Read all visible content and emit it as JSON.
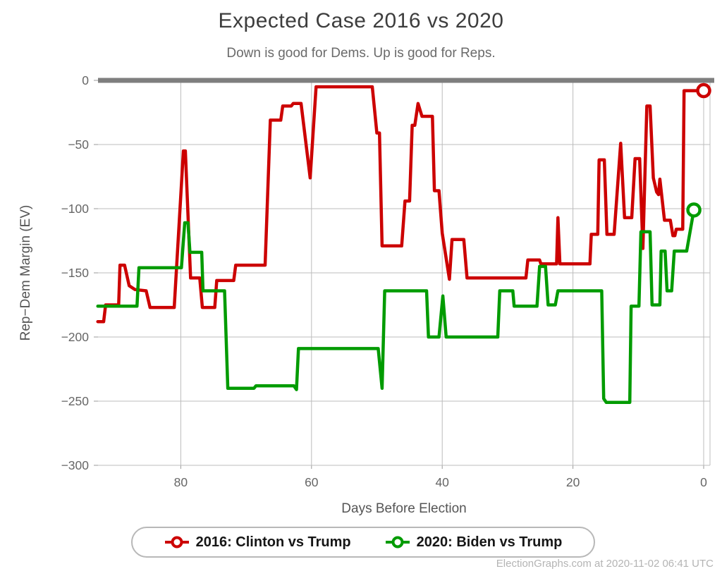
{
  "title": "Expected Case 2016 vs 2020",
  "subtitle": "Down is good for Dems. Up is good for Reps.",
  "footer": "ElectionGraphs.com at 2020-11-02 06:41 UTC",
  "chart_data": {
    "type": "line",
    "title": "Expected Case 2016 vs 2020",
    "subtitle": "Down is good for Dems. Up is good for Reps.",
    "xlabel": "Days Before Election",
    "ylabel": "Rep−Dem Margin (EV)",
    "x_reversed": true,
    "xlim": [
      93,
      0
    ],
    "ylim": [
      -300,
      0
    ],
    "x_ticks": [
      80,
      60,
      40,
      20,
      0
    ],
    "x_tick_labels": [
      "80",
      "60",
      "40",
      "20",
      "0"
    ],
    "y_ticks": [
      0,
      -50,
      -100,
      -150,
      -200,
      -250,
      -300
    ],
    "y_tick_labels": [
      "0",
      "−50",
      "−100",
      "−150",
      "−200",
      "−250",
      "−300"
    ],
    "grid": true,
    "grid_color": "#bcbcbc",
    "zero_bar_color": "#7e7e7e",
    "tick_text_color": "#666666",
    "legend_position": "bottom",
    "series": [
      {
        "name": "2016: Clinton vs Trump",
        "color": "#cc0000",
        "end_marker": true,
        "points": [
          [
            92.7,
            -188
          ],
          [
            91.8,
            -188
          ],
          [
            91.5,
            -175
          ],
          [
            89.5,
            -175
          ],
          [
            89.3,
            -144
          ],
          [
            88.6,
            -144
          ],
          [
            87.9,
            -160
          ],
          [
            87.0,
            -163
          ],
          [
            85.3,
            -164
          ],
          [
            84.7,
            -177
          ],
          [
            81.0,
            -177
          ],
          [
            79.6,
            -55
          ],
          [
            79.3,
            -55
          ],
          [
            78.5,
            -154
          ],
          [
            77.1,
            -154
          ],
          [
            76.7,
            -177
          ],
          [
            74.8,
            -177
          ],
          [
            74.5,
            -156
          ],
          [
            71.9,
            -156
          ],
          [
            71.6,
            -144
          ],
          [
            67.1,
            -144
          ],
          [
            66.3,
            -31
          ],
          [
            64.7,
            -31
          ],
          [
            64.4,
            -20
          ],
          [
            63.1,
            -20
          ],
          [
            62.8,
            -18
          ],
          [
            61.6,
            -18
          ],
          [
            60.2,
            -76
          ],
          [
            59.3,
            -5
          ],
          [
            50.7,
            -5
          ],
          [
            50.0,
            -41
          ],
          [
            49.6,
            -41
          ],
          [
            49.2,
            -129
          ],
          [
            46.2,
            -129
          ],
          [
            45.7,
            -94
          ],
          [
            45.0,
            -94
          ],
          [
            44.6,
            -35
          ],
          [
            44.2,
            -35
          ],
          [
            43.7,
            -18
          ],
          [
            43.1,
            -28
          ],
          [
            41.5,
            -28
          ],
          [
            41.2,
            -86
          ],
          [
            40.5,
            -86
          ],
          [
            40.0,
            -119
          ],
          [
            38.9,
            -155
          ],
          [
            38.5,
            -124
          ],
          [
            36.7,
            -124
          ],
          [
            36.2,
            -154
          ],
          [
            27.2,
            -154
          ],
          [
            26.9,
            -140
          ],
          [
            25.1,
            -140
          ],
          [
            24.9,
            -143
          ],
          [
            22.5,
            -143
          ],
          [
            22.3,
            -107
          ],
          [
            22.0,
            -143
          ],
          [
            17.4,
            -143
          ],
          [
            17.2,
            -120
          ],
          [
            16.2,
            -120
          ],
          [
            16.0,
            -62
          ],
          [
            15.2,
            -62
          ],
          [
            14.8,
            -120
          ],
          [
            13.7,
            -120
          ],
          [
            12.7,
            -49
          ],
          [
            12.1,
            -107
          ],
          [
            11.0,
            -107
          ],
          [
            10.5,
            -61
          ],
          [
            9.8,
            -61
          ],
          [
            9.3,
            -131
          ],
          [
            8.7,
            -20
          ],
          [
            8.2,
            -20
          ],
          [
            7.7,
            -76
          ],
          [
            7.2,
            -87
          ],
          [
            6.9,
            -89
          ],
          [
            6.7,
            -77
          ],
          [
            6.0,
            -109
          ],
          [
            5.1,
            -109
          ],
          [
            4.7,
            -121
          ],
          [
            4.4,
            -121
          ],
          [
            4.2,
            -116
          ],
          [
            3.2,
            -116
          ],
          [
            3.0,
            -8
          ],
          [
            0,
            -8
          ]
        ]
      },
      {
        "name": "2020: Biden vs Trump",
        "color": "#009b00",
        "end_marker": true,
        "points": [
          [
            92.7,
            -176
          ],
          [
            86.7,
            -176
          ],
          [
            86.4,
            -146
          ],
          [
            79.9,
            -146
          ],
          [
            79.4,
            -111
          ],
          [
            78.9,
            -111
          ],
          [
            78.6,
            -134
          ],
          [
            76.8,
            -134
          ],
          [
            76.6,
            -164
          ],
          [
            73.3,
            -164
          ],
          [
            72.8,
            -240
          ],
          [
            68.8,
            -240
          ],
          [
            68.5,
            -238
          ],
          [
            62.7,
            -238
          ],
          [
            62.3,
            -241
          ],
          [
            62.0,
            -209
          ],
          [
            49.8,
            -209
          ],
          [
            49.2,
            -240
          ],
          [
            48.8,
            -164
          ],
          [
            42.4,
            -164
          ],
          [
            42.1,
            -200
          ],
          [
            40.5,
            -200
          ],
          [
            39.9,
            -168
          ],
          [
            39.4,
            -200
          ],
          [
            31.5,
            -200
          ],
          [
            31.2,
            -164
          ],
          [
            29.2,
            -164
          ],
          [
            29.0,
            -176
          ],
          [
            25.5,
            -176
          ],
          [
            25.1,
            -145
          ],
          [
            24.2,
            -145
          ],
          [
            23.8,
            -175
          ],
          [
            22.7,
            -175
          ],
          [
            22.3,
            -164
          ],
          [
            15.6,
            -164
          ],
          [
            15.3,
            -248
          ],
          [
            14.9,
            -251
          ],
          [
            11.3,
            -251
          ],
          [
            11.1,
            -176
          ],
          [
            9.9,
            -176
          ],
          [
            9.6,
            -118
          ],
          [
            8.2,
            -118
          ],
          [
            7.9,
            -175
          ],
          [
            6.7,
            -175
          ],
          [
            6.5,
            -133
          ],
          [
            5.9,
            -133
          ],
          [
            5.6,
            -164
          ],
          [
            4.9,
            -164
          ],
          [
            4.5,
            -133
          ],
          [
            2.6,
            -133
          ],
          [
            1.5,
            -101
          ]
        ]
      }
    ]
  }
}
